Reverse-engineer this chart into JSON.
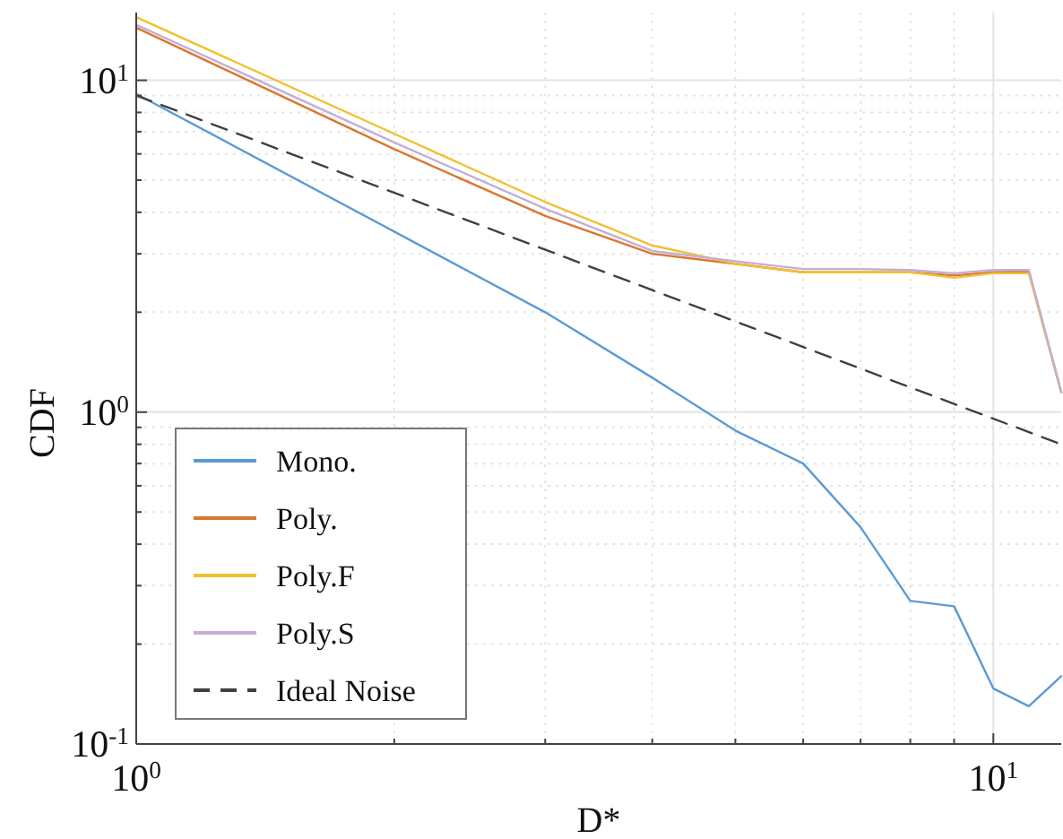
{
  "chart_data": {
    "type": "line",
    "xlabel": "D*",
    "ylabel": "CDF",
    "log": "xy",
    "grid": true,
    "legend": "bottom left",
    "xlim": [
      1,
      12
    ],
    "ylim": [
      0.1,
      16
    ],
    "xticks": [
      {
        "value": 1,
        "label": "10$^{0}$"
      },
      {
        "value": 10,
        "label": "10$^{1}$"
      }
    ],
    "yticks": [
      {
        "value": 0.1,
        "label": "10$^{-1}$"
      },
      {
        "value": 1,
        "label": "10$^{0}$"
      },
      {
        "value": 10,
        "label": "10$^{1}$"
      }
    ],
    "x": [
      1,
      2,
      3,
      4,
      5,
      6,
      7,
      8,
      9,
      10,
      11,
      12
    ],
    "series": [
      {
        "name": "Mono.",
        "color": "#5b9bd5",
        "values": [
          9.1,
          3.5,
          2.0,
          1.27,
          0.88,
          0.7,
          0.45,
          0.27,
          0.26,
          0.147,
          0.13,
          0.16
        ]
      },
      {
        "name": "Poly.",
        "color": "#d9772f",
        "values": [
          14.4,
          6.2,
          3.9,
          3.0,
          2.8,
          2.64,
          2.64,
          2.64,
          2.58,
          2.64,
          2.66,
          1.15
        ]
      },
      {
        "name": "Poly.F",
        "color": "#f0c030",
        "values": [
          15.5,
          6.9,
          4.3,
          3.18,
          2.8,
          2.64,
          2.64,
          2.64,
          2.54,
          2.62,
          2.62,
          1.15
        ]
      },
      {
        "name": "Poly.S",
        "color": "#c4aed6",
        "values": [
          14.7,
          6.5,
          4.1,
          3.06,
          2.85,
          2.7,
          2.7,
          2.68,
          2.62,
          2.68,
          2.68,
          1.15
        ]
      },
      {
        "name": "Ideal Noise",
        "color": "#404040",
        "line_style": "dashed",
        "x": [
          1,
          12
        ],
        "values": [
          9,
          0.8
        ]
      }
    ]
  }
}
